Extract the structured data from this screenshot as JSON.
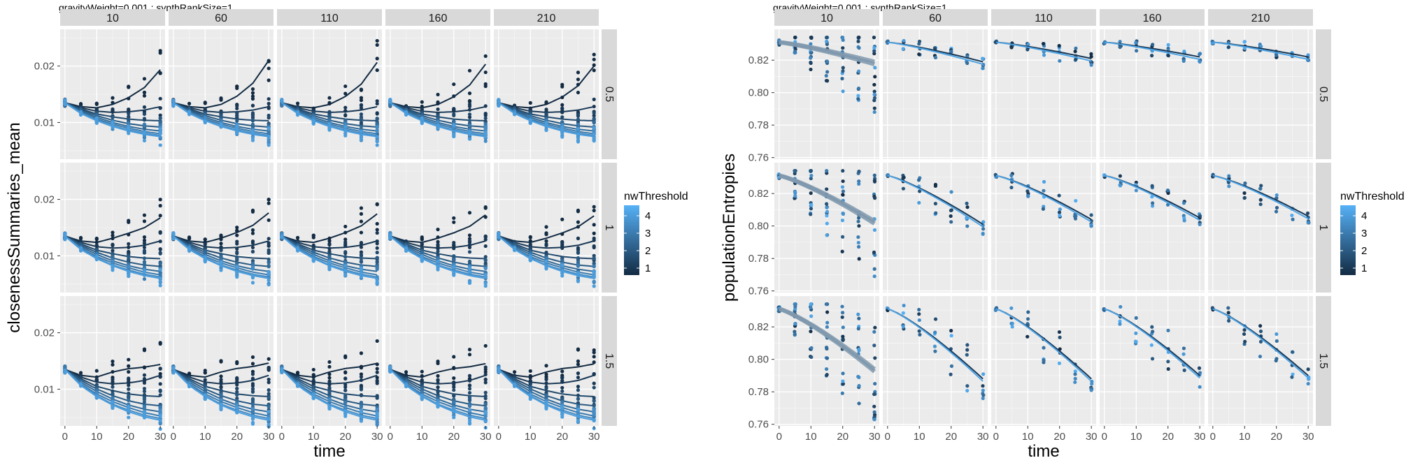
{
  "chart_data": [
    {
      "type": "scatter",
      "title": "gravityWeight=0.001 ; synthRankSize=1",
      "xlabel": "time",
      "ylabel": "closenessSummaries_mean",
      "col_facets": [
        "10",
        "60",
        "110",
        "160",
        "210"
      ],
      "row_facets": [
        "0.5",
        "1",
        "1.5"
      ],
      "x_ticks": [
        0,
        10,
        20,
        30
      ],
      "xlim": [
        -1.5,
        31.5
      ],
      "y_ticks": [
        0.01,
        0.02
      ],
      "y_tick_labels": [
        "0.01",
        "0.02"
      ],
      "ylim": [
        0.0035,
        0.0265
      ],
      "x": [
        0,
        5,
        10,
        15,
        20,
        25,
        30
      ],
      "legend": {
        "title": "nwThreshold",
        "ticks": [
          1,
          2,
          3,
          4
        ],
        "range": [
          0.6,
          4.6
        ],
        "position": "right"
      },
      "grid": true,
      "series_note": "one smoothed line per nwThreshold level; points show replicate spread",
      "series": [
        {
          "nwThreshold": 0.5,
          "values": [
            0.0135,
            0.0128,
            0.0126,
            0.0132,
            0.0145,
            0.0165,
            0.02
          ]
        },
        {
          "nwThreshold": 1.0,
          "values": [
            0.0135,
            0.0126,
            0.012,
            0.0118,
            0.0119,
            0.0122,
            0.0128
          ]
        },
        {
          "nwThreshold": 1.5,
          "values": [
            0.0135,
            0.0124,
            0.0115,
            0.011,
            0.0106,
            0.0104,
            0.0103
          ]
        },
        {
          "nwThreshold": 2.0,
          "values": [
            0.0135,
            0.0122,
            0.0112,
            0.0104,
            0.0098,
            0.0094,
            0.0092
          ]
        },
        {
          "nwThreshold": 2.5,
          "values": [
            0.0135,
            0.012,
            0.0109,
            0.01,
            0.0093,
            0.0088,
            0.0085
          ]
        },
        {
          "nwThreshold": 3.0,
          "values": [
            0.0135,
            0.0118,
            0.0106,
            0.0097,
            0.009,
            0.0084,
            0.008
          ]
        },
        {
          "nwThreshold": 3.5,
          "values": [
            0.0135,
            0.0117,
            0.0104,
            0.0094,
            0.0087,
            0.0081,
            0.0077
          ]
        },
        {
          "nwThreshold": 4.0,
          "values": [
            0.0135,
            0.0116,
            0.0103,
            0.0093,
            0.0085,
            0.0079,
            0.0075
          ]
        }
      ]
    },
    {
      "type": "scatter",
      "title": "gravityWeight=0.001 ; synthRankSize=1",
      "xlabel": "time",
      "ylabel": "populationEntropies",
      "col_facets": [
        "10",
        "60",
        "110",
        "160",
        "210"
      ],
      "row_facets": [
        "0.5",
        "1",
        "1.5"
      ],
      "x_ticks": [
        0,
        10,
        20,
        30
      ],
      "xlim": [
        -1.5,
        31.5
      ],
      "y_ticks": [
        0.76,
        0.78,
        0.8,
        0.82
      ],
      "y_tick_labels": [
        "0.76",
        "0.78",
        "0.80",
        "0.82"
      ],
      "ylim": [
        0.759,
        0.839
      ],
      "x": [
        0,
        5,
        10,
        15,
        20,
        25,
        30
      ],
      "legend": {
        "title": "nwThreshold",
        "ticks": [
          1,
          2,
          3,
          4
        ],
        "range": [
          0.6,
          4.6
        ],
        "position": "right"
      },
      "grid": true,
      "trend_start": 0.831,
      "trend_end": {
        "0.5": [
          0.819,
          0.819,
          0.821,
          0.822,
          0.822
        ],
        "1": [
          0.803,
          0.801,
          0.804,
          0.805,
          0.806
        ],
        "1.5": [
          0.794,
          0.788,
          0.788,
          0.79,
          0.79
        ]
      },
      "min_values": {
        "0.5": [
          0.788,
          0.815,
          0.817,
          0.819,
          0.82
        ],
        "1": [
          0.769,
          0.795,
          0.8,
          0.801,
          0.802
        ],
        "1.5": [
          0.763,
          0.776,
          0.781,
          0.783,
          0.785
        ]
      }
    }
  ]
}
